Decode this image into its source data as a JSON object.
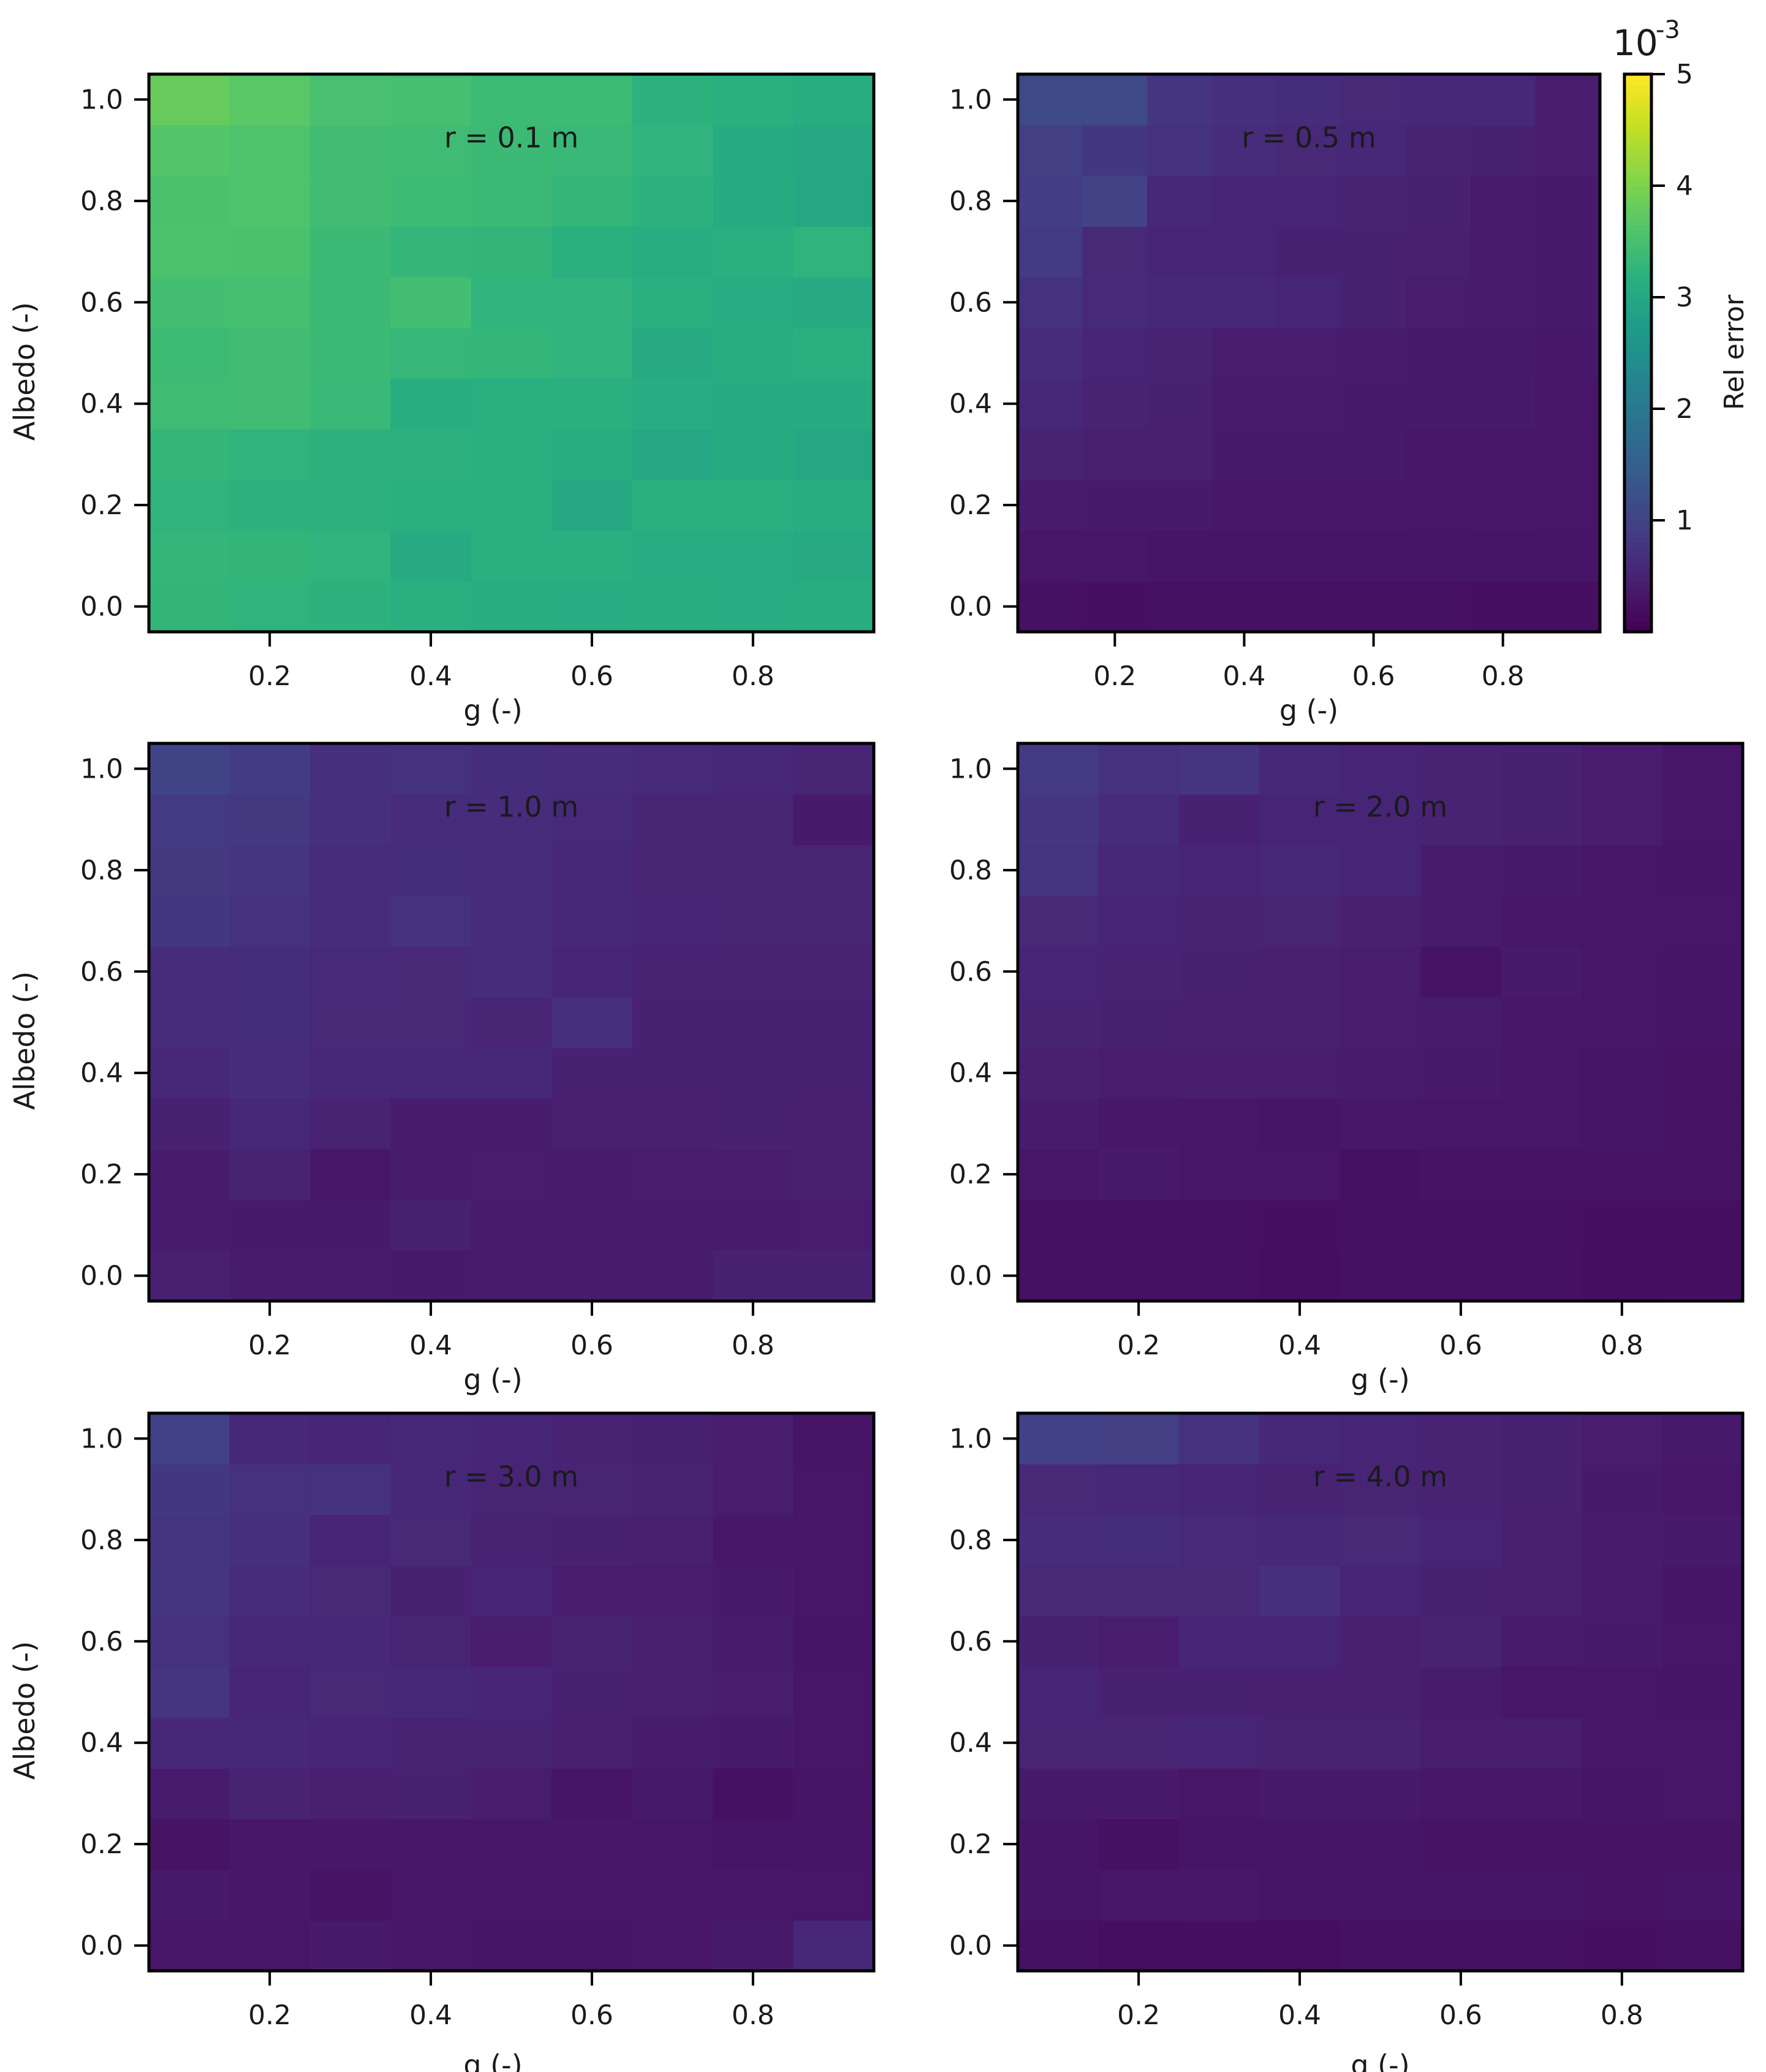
{
  "colorbar": {
    "label": "Rel error",
    "exponent_base": "10",
    "exponent_power": "-3",
    "ticks": [
      1,
      2,
      3,
      4,
      5
    ],
    "tick_labels": [
      "1",
      "2",
      "3",
      "4",
      "5"
    ],
    "vmin": 0.0,
    "vmax": 5.0,
    "colormap": "viridis"
  },
  "chart_data": [
    {
      "type": "heatmap",
      "annotation": "r = 0.1 m",
      "xlabel": "g (-)",
      "ylabel": "Albedo (-)",
      "x_centers": [
        0.1,
        0.2,
        0.3,
        0.4,
        0.5,
        0.6,
        0.7,
        0.8,
        0.9
      ],
      "y_centers": [
        0.0,
        0.1,
        0.2,
        0.3,
        0.4,
        0.5,
        0.6,
        0.7,
        0.8,
        0.9,
        1.0
      ],
      "xlim": [
        0.05,
        0.95
      ],
      "ylim": [
        -0.05,
        1.05
      ],
      "xticks": [
        "0.2",
        "0.4",
        "0.6",
        "0.8"
      ],
      "yticks": [
        "0.0",
        "0.2",
        "0.4",
        "0.6",
        "0.8",
        "1.0"
      ],
      "values": [
        [
          3.28,
          3.25,
          3.22,
          3.15,
          3.12,
          3.1,
          3.12,
          3.1,
          3.12
        ],
        [
          3.3,
          3.28,
          3.25,
          3.05,
          3.15,
          3.15,
          3.1,
          3.1,
          3.05
        ],
        [
          3.25,
          3.22,
          3.2,
          3.18,
          3.18,
          3.02,
          3.18,
          3.15,
          3.12
        ],
        [
          3.3,
          3.25,
          3.22,
          3.2,
          3.15,
          3.12,
          2.98,
          3.08,
          2.98
        ],
        [
          3.42,
          3.45,
          3.35,
          3.12,
          3.15,
          3.15,
          3.1,
          3.08,
          3.08
        ],
        [
          3.4,
          3.45,
          3.38,
          3.32,
          3.3,
          3.25,
          3.05,
          3.12,
          3.15
        ],
        [
          3.48,
          3.5,
          3.38,
          3.48,
          3.25,
          3.25,
          3.15,
          3.1,
          3.05
        ],
        [
          3.58,
          3.55,
          3.38,
          3.3,
          3.28,
          3.18,
          3.12,
          3.15,
          3.25
        ],
        [
          3.55,
          3.6,
          3.45,
          3.4,
          3.38,
          3.3,
          3.22,
          3.08,
          2.98
        ],
        [
          3.65,
          3.6,
          3.45,
          3.42,
          3.38,
          3.35,
          3.25,
          3.08,
          3.02
        ],
        [
          3.82,
          3.7,
          3.52,
          3.5,
          3.4,
          3.4,
          3.22,
          3.18,
          3.12
        ]
      ]
    },
    {
      "type": "heatmap",
      "annotation": "r = 0.5 m",
      "xlabel": "g (-)",
      "ylabel": "",
      "x_centers": [
        0.1,
        0.2,
        0.3,
        0.4,
        0.5,
        0.6,
        0.7,
        0.8,
        0.9
      ],
      "y_centers": [
        0.0,
        0.1,
        0.2,
        0.3,
        0.4,
        0.5,
        0.6,
        0.7,
        0.8,
        0.9,
        1.0
      ],
      "xlim": [
        0.05,
        0.95
      ],
      "ylim": [
        -0.05,
        1.05
      ],
      "xticks": [
        "0.2",
        "0.4",
        "0.6",
        "0.8"
      ],
      "yticks": [
        "0.0",
        "0.2",
        "0.4",
        "0.6",
        "0.8",
        "1.0"
      ],
      "values": [
        [
          0.22,
          0.2,
          0.22,
          0.22,
          0.22,
          0.22,
          0.22,
          0.2,
          0.2
        ],
        [
          0.3,
          0.3,
          0.28,
          0.28,
          0.28,
          0.28,
          0.28,
          0.28,
          0.28
        ],
        [
          0.38,
          0.35,
          0.35,
          0.32,
          0.32,
          0.32,
          0.3,
          0.32,
          0.3
        ],
        [
          0.48,
          0.42,
          0.42,
          0.35,
          0.35,
          0.35,
          0.32,
          0.32,
          0.3
        ],
        [
          0.55,
          0.48,
          0.45,
          0.38,
          0.38,
          0.35,
          0.35,
          0.35,
          0.3
        ],
        [
          0.62,
          0.52,
          0.48,
          0.4,
          0.4,
          0.38,
          0.35,
          0.35,
          0.32
        ],
        [
          0.72,
          0.6,
          0.55,
          0.55,
          0.52,
          0.45,
          0.4,
          0.38,
          0.35
        ],
        [
          0.85,
          0.58,
          0.52,
          0.52,
          0.45,
          0.45,
          0.42,
          0.38,
          0.35
        ],
        [
          0.9,
          1.0,
          0.55,
          0.52,
          0.52,
          0.48,
          0.45,
          0.38,
          0.35
        ],
        [
          0.92,
          0.8,
          0.72,
          0.62,
          0.58,
          0.55,
          0.48,
          0.45,
          0.4
        ],
        [
          1.1,
          1.1,
          0.75,
          0.68,
          0.65,
          0.58,
          0.55,
          0.55,
          0.4
        ]
      ]
    },
    {
      "type": "heatmap",
      "annotation": "r = 1.0 m",
      "xlabel": "g (-)",
      "ylabel": "Albedo (-)",
      "x_centers": [
        0.1,
        0.2,
        0.3,
        0.4,
        0.5,
        0.6,
        0.7,
        0.8,
        0.9
      ],
      "y_centers": [
        0.0,
        0.1,
        0.2,
        0.3,
        0.4,
        0.5,
        0.6,
        0.7,
        0.8,
        0.9,
        1.0
      ],
      "xlim": [
        0.05,
        0.95
      ],
      "ylim": [
        -0.05,
        1.05
      ],
      "xticks": [
        "0.2",
        "0.4",
        "0.6",
        "0.8"
      ],
      "yticks": [
        "0.0",
        "0.2",
        "0.4",
        "0.6",
        "0.8",
        "1.0"
      ],
      "values": [
        [
          0.42,
          0.38,
          0.38,
          0.35,
          0.38,
          0.38,
          0.38,
          0.45,
          0.45
        ],
        [
          0.38,
          0.35,
          0.35,
          0.45,
          0.38,
          0.38,
          0.38,
          0.38,
          0.4
        ],
        [
          0.38,
          0.48,
          0.3,
          0.38,
          0.4,
          0.38,
          0.4,
          0.4,
          0.42
        ],
        [
          0.45,
          0.55,
          0.48,
          0.38,
          0.38,
          0.42,
          0.42,
          0.45,
          0.42
        ],
        [
          0.55,
          0.62,
          0.55,
          0.55,
          0.55,
          0.45,
          0.45,
          0.45,
          0.45
        ],
        [
          0.62,
          0.65,
          0.58,
          0.58,
          0.5,
          0.68,
          0.45,
          0.45,
          0.45
        ],
        [
          0.62,
          0.65,
          0.6,
          0.58,
          0.62,
          0.52,
          0.48,
          0.48,
          0.48
        ],
        [
          0.8,
          0.72,
          0.62,
          0.72,
          0.62,
          0.55,
          0.52,
          0.5,
          0.5
        ],
        [
          0.82,
          0.75,
          0.62,
          0.65,
          0.62,
          0.55,
          0.5,
          0.5,
          0.5
        ],
        [
          0.85,
          0.82,
          0.68,
          0.62,
          0.62,
          0.6,
          0.5,
          0.5,
          0.35
        ],
        [
          1.02,
          0.88,
          0.68,
          0.72,
          0.65,
          0.62,
          0.6,
          0.55,
          0.5
        ]
      ]
    },
    {
      "type": "heatmap",
      "annotation": "r = 2.0 m",
      "xlabel": "g (-)",
      "ylabel": "",
      "x_centers": [
        0.1,
        0.2,
        0.3,
        0.4,
        0.5,
        0.6,
        0.7,
        0.8,
        0.9
      ],
      "y_centers": [
        0.0,
        0.1,
        0.2,
        0.3,
        0.4,
        0.5,
        0.6,
        0.7,
        0.8,
        0.9,
        1.0
      ],
      "xlim": [
        0.05,
        0.95
      ],
      "ylim": [
        -0.05,
        1.05
      ],
      "xticks": [
        "0.2",
        "0.4",
        "0.6",
        "0.8"
      ],
      "yticks": [
        "0.0",
        "0.2",
        "0.4",
        "0.6",
        "0.8",
        "1.0"
      ],
      "values": [
        [
          0.22,
          0.22,
          0.22,
          0.18,
          0.22,
          0.22,
          0.22,
          0.18,
          0.2
        ],
        [
          0.22,
          0.22,
          0.22,
          0.2,
          0.22,
          0.22,
          0.22,
          0.2,
          0.2
        ],
        [
          0.3,
          0.35,
          0.3,
          0.3,
          0.22,
          0.25,
          0.25,
          0.25,
          0.25
        ],
        [
          0.38,
          0.32,
          0.3,
          0.28,
          0.32,
          0.3,
          0.3,
          0.28,
          0.25
        ],
        [
          0.42,
          0.4,
          0.4,
          0.4,
          0.38,
          0.35,
          0.3,
          0.28,
          0.25
        ],
        [
          0.48,
          0.45,
          0.42,
          0.42,
          0.4,
          0.38,
          0.32,
          0.3,
          0.28
        ],
        [
          0.52,
          0.48,
          0.45,
          0.42,
          0.4,
          0.25,
          0.35,
          0.3,
          0.28
        ],
        [
          0.58,
          0.52,
          0.48,
          0.5,
          0.42,
          0.38,
          0.3,
          0.32,
          0.3
        ],
        [
          0.75,
          0.55,
          0.52,
          0.55,
          0.52,
          0.38,
          0.35,
          0.3,
          0.28
        ],
        [
          0.78,
          0.62,
          0.45,
          0.52,
          0.52,
          0.48,
          0.45,
          0.4,
          0.3
        ],
        [
          0.85,
          0.7,
          0.75,
          0.55,
          0.52,
          0.48,
          0.45,
          0.4,
          0.3
        ]
      ]
    },
    {
      "type": "heatmap",
      "annotation": "r = 3.0 m",
      "xlabel": "g (-)",
      "ylabel": "Albedo (-)",
      "x_centers": [
        0.1,
        0.2,
        0.3,
        0.4,
        0.5,
        0.6,
        0.7,
        0.8,
        0.9
      ],
      "y_centers": [
        0.0,
        0.1,
        0.2,
        0.3,
        0.4,
        0.5,
        0.6,
        0.7,
        0.8,
        0.9,
        1.0
      ],
      "xlim": [
        0.05,
        0.95
      ],
      "ylim": [
        -0.05,
        1.05
      ],
      "xticks": [
        "0.2",
        "0.4",
        "0.6",
        "0.8"
      ],
      "yticks": [
        "0.0",
        "0.2",
        "0.4",
        "0.6",
        "0.8",
        "1.0"
      ],
      "values": [
        [
          0.3,
          0.3,
          0.35,
          0.32,
          0.28,
          0.28,
          0.3,
          0.35,
          0.55
        ],
        [
          0.35,
          0.32,
          0.25,
          0.3,
          0.3,
          0.3,
          0.32,
          0.32,
          0.3
        ],
        [
          0.25,
          0.32,
          0.32,
          0.3,
          0.32,
          0.32,
          0.3,
          0.28,
          0.28
        ],
        [
          0.38,
          0.48,
          0.42,
          0.45,
          0.4,
          0.28,
          0.35,
          0.22,
          0.28
        ],
        [
          0.55,
          0.55,
          0.52,
          0.48,
          0.48,
          0.42,
          0.38,
          0.35,
          0.3
        ],
        [
          0.75,
          0.52,
          0.58,
          0.55,
          0.52,
          0.45,
          0.42,
          0.4,
          0.3
        ],
        [
          0.72,
          0.55,
          0.55,
          0.5,
          0.4,
          0.48,
          0.42,
          0.38,
          0.28
        ],
        [
          0.78,
          0.62,
          0.58,
          0.45,
          0.52,
          0.4,
          0.4,
          0.35,
          0.3
        ],
        [
          0.75,
          0.68,
          0.52,
          0.58,
          0.48,
          0.45,
          0.42,
          0.32,
          0.3
        ],
        [
          0.8,
          0.7,
          0.72,
          0.55,
          0.5,
          0.5,
          0.48,
          0.4,
          0.3
        ],
        [
          0.95,
          0.55,
          0.52,
          0.55,
          0.52,
          0.48,
          0.45,
          0.4,
          0.28
        ]
      ]
    },
    {
      "type": "heatmap",
      "annotation": "r = 4.0 m",
      "xlabel": "g (-)",
      "ylabel": "",
      "x_centers": [
        0.1,
        0.2,
        0.3,
        0.4,
        0.5,
        0.6,
        0.7,
        0.8,
        0.9
      ],
      "y_centers": [
        0.0,
        0.1,
        0.2,
        0.3,
        0.4,
        0.5,
        0.6,
        0.7,
        0.8,
        0.9,
        1.0
      ],
      "xlim": [
        0.05,
        0.95
      ],
      "ylim": [
        -0.05,
        1.05
      ],
      "xticks": [
        "0.2",
        "0.4",
        "0.6",
        "0.8"
      ],
      "yticks": [
        "0.0",
        "0.2",
        "0.4",
        "0.6",
        "0.8",
        "1.0"
      ],
      "values": [
        [
          0.22,
          0.18,
          0.2,
          0.18,
          0.22,
          0.22,
          0.22,
          0.2,
          0.22
        ],
        [
          0.28,
          0.3,
          0.32,
          0.28,
          0.28,
          0.28,
          0.28,
          0.25,
          0.28
        ],
        [
          0.28,
          0.22,
          0.28,
          0.28,
          0.28,
          0.25,
          0.25,
          0.25,
          0.25
        ],
        [
          0.35,
          0.35,
          0.3,
          0.35,
          0.35,
          0.3,
          0.32,
          0.28,
          0.3
        ],
        [
          0.5,
          0.5,
          0.52,
          0.48,
          0.48,
          0.4,
          0.4,
          0.3,
          0.3
        ],
        [
          0.52,
          0.45,
          0.45,
          0.42,
          0.42,
          0.38,
          0.3,
          0.3,
          0.28
        ],
        [
          0.45,
          0.4,
          0.52,
          0.52,
          0.42,
          0.48,
          0.38,
          0.35,
          0.3
        ],
        [
          0.58,
          0.58,
          0.58,
          0.68,
          0.52,
          0.45,
          0.42,
          0.38,
          0.28
        ],
        [
          0.62,
          0.65,
          0.6,
          0.55,
          0.58,
          0.52,
          0.42,
          0.38,
          0.35
        ],
        [
          0.58,
          0.55,
          0.52,
          0.48,
          0.5,
          0.48,
          0.45,
          0.35,
          0.3
        ],
        [
          0.95,
          0.92,
          0.72,
          0.55,
          0.52,
          0.48,
          0.45,
          0.4,
          0.35
        ]
      ]
    }
  ]
}
